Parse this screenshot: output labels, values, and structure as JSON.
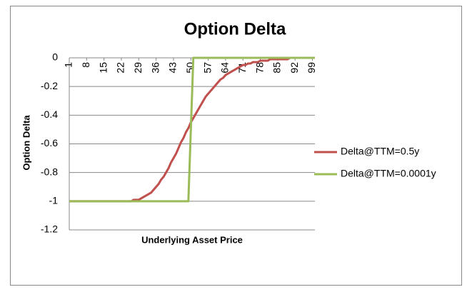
{
  "chart_data": {
    "type": "line",
    "title": "Option Delta",
    "x_label": "Underlying Asset Price",
    "y_label": "Option Delta",
    "x": [
      1,
      2,
      3,
      4,
      5,
      6,
      7,
      8,
      9,
      10,
      11,
      12,
      13,
      14,
      15,
      16,
      17,
      18,
      19,
      20,
      21,
      22,
      23,
      24,
      25,
      26,
      27,
      28,
      29,
      30,
      31,
      32,
      33,
      34,
      35,
      36,
      37,
      38,
      39,
      40,
      41,
      42,
      43,
      44,
      45,
      46,
      47,
      48,
      49,
      50,
      51,
      52,
      53,
      54,
      55,
      56,
      57,
      58,
      59,
      60,
      61,
      62,
      63,
      64,
      65,
      66,
      67,
      68,
      69,
      70,
      71,
      72,
      73,
      74,
      75,
      76,
      77,
      78,
      79,
      80,
      81,
      82,
      83,
      84,
      85,
      86,
      87,
      88,
      89,
      90,
      91,
      92,
      93,
      94,
      95,
      96,
      97,
      98,
      99,
      100
    ],
    "xlim": [
      1,
      100
    ],
    "xticks": [
      1,
      8,
      15,
      22,
      29,
      36,
      43,
      50,
      57,
      64,
      71,
      78,
      85,
      92,
      99
    ],
    "ylim": [
      -1.2,
      0
    ],
    "yticks": [
      0,
      -0.2,
      -0.4,
      -0.6,
      -0.8,
      -1,
      -1.2
    ],
    "grid": true,
    "legend": "right",
    "series": [
      {
        "name": "Delta@TTM=0.5y",
        "color": "#c0504d",
        "values": [
          -1,
          -1,
          -1,
          -1,
          -1,
          -1,
          -1,
          -1,
          -1,
          -1,
          -1,
          -1,
          -1,
          -1,
          -1,
          -1,
          -1,
          -1,
          -1,
          -1,
          -1,
          -1,
          -1,
          -1,
          -1,
          -1,
          -0.99,
          -0.99,
          -0.99,
          -0.98,
          -0.97,
          -0.96,
          -0.95,
          -0.94,
          -0.92,
          -0.9,
          -0.88,
          -0.85,
          -0.83,
          -0.8,
          -0.77,
          -0.73,
          -0.7,
          -0.67,
          -0.63,
          -0.59,
          -0.56,
          -0.52,
          -0.49,
          -0.45,
          -0.42,
          -0.39,
          -0.36,
          -0.33,
          -0.3,
          -0.27,
          -0.25,
          -0.23,
          -0.21,
          -0.19,
          -0.17,
          -0.15,
          -0.14,
          -0.12,
          -0.11,
          -0.1,
          -0.09,
          -0.08,
          -0.07,
          -0.06,
          -0.05,
          -0.05,
          -0.04,
          -0.04,
          -0.03,
          -0.03,
          -0.03,
          -0.02,
          -0.02,
          -0.02,
          -0.02,
          -0.01,
          -0.01,
          -0.01,
          -0.01,
          -0.01,
          -0.01,
          -0.01,
          -0.01,
          0,
          0,
          0,
          0,
          0,
          0,
          0,
          0,
          0,
          0,
          0
        ]
      },
      {
        "name": "Delta@TTM=0.0001y",
        "color": "#9bbb59",
        "values": [
          -1,
          -1,
          -1,
          -1,
          -1,
          -1,
          -1,
          -1,
          -1,
          -1,
          -1,
          -1,
          -1,
          -1,
          -1,
          -1,
          -1,
          -1,
          -1,
          -1,
          -1,
          -1,
          -1,
          -1,
          -1,
          -1,
          -1,
          -1,
          -1,
          -1,
          -1,
          -1,
          -1,
          -1,
          -1,
          -1,
          -1,
          -1,
          -1,
          -1,
          -1,
          -1,
          -1,
          -1,
          -1,
          -1,
          -1,
          -1,
          -1,
          -0.5,
          0,
          0,
          0,
          0,
          0,
          0,
          0,
          0,
          0,
          0,
          0,
          0,
          0,
          0,
          0,
          0,
          0,
          0,
          0,
          0,
          0,
          0,
          0,
          0,
          0,
          0,
          0,
          0,
          0,
          0,
          0,
          0,
          0,
          0,
          0,
          0,
          0,
          0,
          0,
          0,
          0,
          0,
          0,
          0,
          0,
          0,
          0,
          0,
          0,
          0
        ]
      }
    ]
  }
}
